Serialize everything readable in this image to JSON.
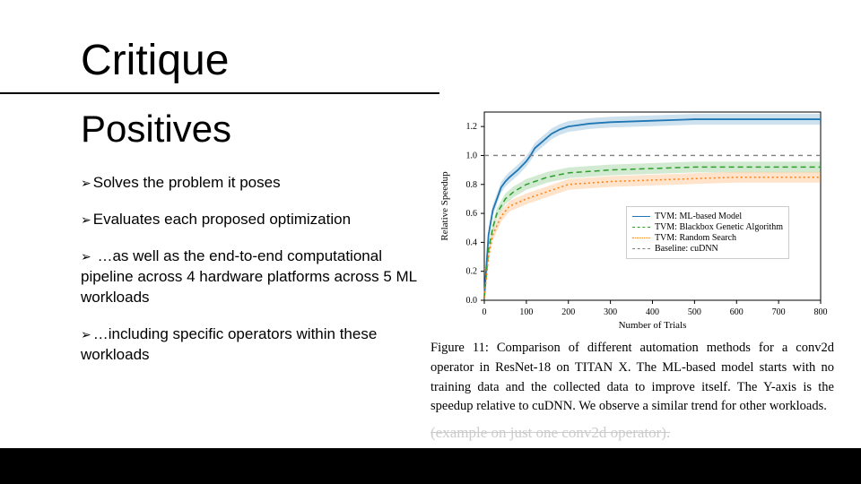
{
  "title": "Critique",
  "subtitle": "Positives",
  "bullets": [
    "Solves the problem it poses",
    "Evaluates each proposed optimization",
    " …as well as the end-to-end computational pipeline across 4 hardware platforms across 5 ML workloads",
    "…including specific operators within these workloads"
  ],
  "chart": {
    "type": "line",
    "xlabel": "Number of Trials",
    "ylabel": "Relative Speedup",
    "xlim": [
      0,
      800
    ],
    "ylim": [
      0.0,
      1.3
    ],
    "xticks": [
      0,
      100,
      200,
      300,
      400,
      500,
      600,
      700,
      800
    ],
    "yticks": [
      0.0,
      0.2,
      0.4,
      0.6,
      0.8,
      1.0,
      1.2
    ],
    "tick_fontsize": 10,
    "label_fontsize": 11,
    "background_color": "#ffffff",
    "axis_color": "#000000",
    "series": [
      {
        "name": "TVM: ML-based Model",
        "color": "#1f77b4",
        "dash": "none",
        "width": 1.8,
        "fill_opacity": 0.22,
        "data": [
          [
            0,
            0.02
          ],
          [
            10,
            0.45
          ],
          [
            20,
            0.62
          ],
          [
            30,
            0.7
          ],
          [
            40,
            0.78
          ],
          [
            50,
            0.82
          ],
          [
            60,
            0.85
          ],
          [
            80,
            0.9
          ],
          [
            100,
            0.96
          ],
          [
            110,
            1.0
          ],
          [
            120,
            1.05
          ],
          [
            140,
            1.1
          ],
          [
            160,
            1.15
          ],
          [
            180,
            1.18
          ],
          [
            200,
            1.2
          ],
          [
            250,
            1.22
          ],
          [
            300,
            1.23
          ],
          [
            400,
            1.24
          ],
          [
            500,
            1.25
          ],
          [
            600,
            1.25
          ],
          [
            700,
            1.25
          ],
          [
            800,
            1.25
          ]
        ]
      },
      {
        "name": "TVM: Blackbox Genetic Algorithm",
        "color": "#2ca02c",
        "dash": "6,4",
        "width": 1.5,
        "fill_opacity": 0.22,
        "data": [
          [
            0,
            0.02
          ],
          [
            10,
            0.35
          ],
          [
            20,
            0.5
          ],
          [
            30,
            0.6
          ],
          [
            50,
            0.7
          ],
          [
            70,
            0.75
          ],
          [
            100,
            0.8
          ],
          [
            150,
            0.85
          ],
          [
            200,
            0.88
          ],
          [
            300,
            0.9
          ],
          [
            400,
            0.91
          ],
          [
            500,
            0.92
          ],
          [
            600,
            0.92
          ],
          [
            700,
            0.92
          ],
          [
            800,
            0.92
          ]
        ]
      },
      {
        "name": "TVM: Random Search",
        "color": "#ff7f0e",
        "dash": "2,3",
        "width": 1.5,
        "fill_opacity": 0.22,
        "data": [
          [
            0,
            0.02
          ],
          [
            10,
            0.3
          ],
          [
            20,
            0.45
          ],
          [
            40,
            0.58
          ],
          [
            60,
            0.65
          ],
          [
            100,
            0.7
          ],
          [
            150,
            0.75
          ],
          [
            200,
            0.8
          ],
          [
            300,
            0.82
          ],
          [
            400,
            0.83
          ],
          [
            500,
            0.84
          ],
          [
            600,
            0.85
          ],
          [
            700,
            0.85
          ],
          [
            800,
            0.85
          ]
        ]
      },
      {
        "name": "Baseline: cuDNN",
        "color": "#7f7f7f",
        "dash": "5,5",
        "width": 1.3,
        "fill_opacity": 0,
        "data": [
          [
            0,
            1.0
          ],
          [
            800,
            1.0
          ]
        ]
      }
    ],
    "legend": {
      "position": "right-inside",
      "fontsize": 10,
      "items": [
        "TVM: ML-based Model",
        "TVM: Blackbox Genetic Algorithm",
        "TVM: Random Search",
        "Baseline: cuDNN"
      ]
    }
  },
  "caption": "Figure 11: Comparison of different automation methods for a conv2d operator in ResNet-18 on TITAN X. The ML-based model starts with no training data and the collected data to improve itself. The Y-axis is the speedup relative to cuDNN. We observe a similar trend for other workloads.",
  "example_note": "(example on just one conv2d operator).",
  "bottom_bar_color": "#000000"
}
